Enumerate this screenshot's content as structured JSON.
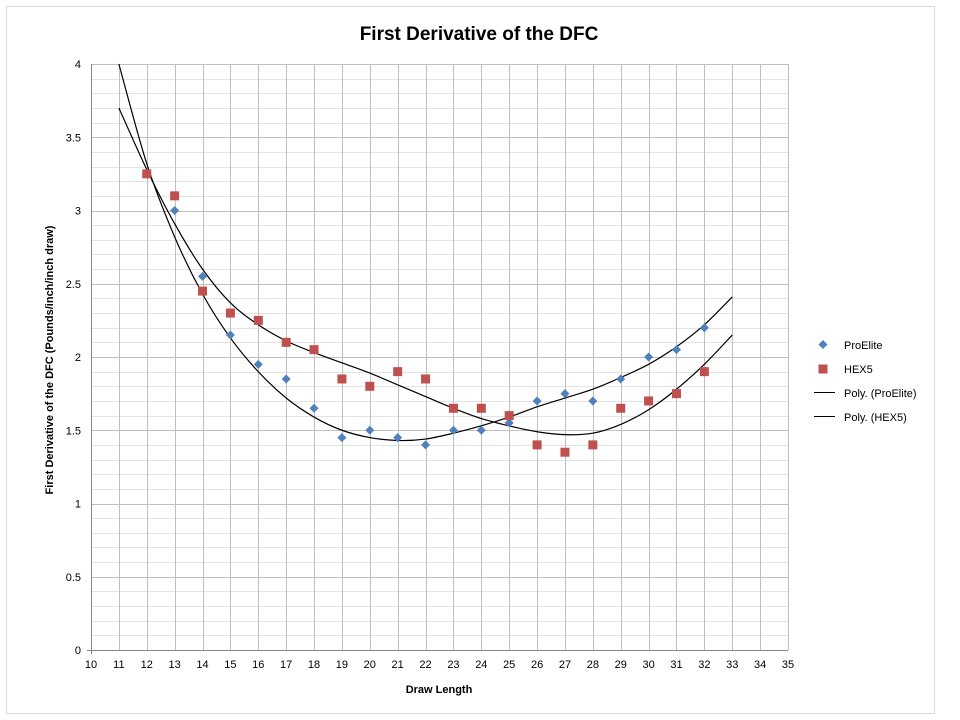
{
  "chart_data": {
    "type": "scatter",
    "title": "First Derivative of the DFC",
    "xlabel": "Draw Length",
    "ylabel": "First Derivative of the DFC (Pounds/inch/inch  draw)",
    "xlim": [
      10,
      35
    ],
    "ylim": [
      0,
      4
    ],
    "xticks": [
      10,
      11,
      12,
      13,
      14,
      15,
      16,
      17,
      18,
      19,
      20,
      21,
      22,
      23,
      24,
      25,
      26,
      27,
      28,
      29,
      30,
      31,
      32,
      33,
      34,
      35
    ],
    "yticks": [
      "0",
      "0.5",
      "1",
      "1.5",
      "2",
      "2.5",
      "3",
      "3.5",
      "4"
    ],
    "ytick_values": [
      0,
      0.5,
      1,
      1.5,
      2,
      2.5,
      3,
      3.5,
      4
    ],
    "grid": true,
    "legend_position": "right",
    "series": [
      {
        "name": "ProElite",
        "marker": "diamond",
        "color": "#4f81bd",
        "x": [
          12,
          13,
          14,
          15,
          16,
          17,
          18,
          19,
          20,
          21,
          22,
          23,
          24,
          25,
          26,
          27,
          28,
          29,
          30,
          31,
          32
        ],
        "y": [
          3.25,
          3.0,
          2.55,
          2.15,
          1.95,
          1.85,
          1.65,
          1.45,
          1.5,
          1.45,
          1.4,
          1.5,
          1.5,
          1.55,
          1.7,
          1.75,
          1.7,
          1.85,
          2.0,
          2.05,
          2.2
        ]
      },
      {
        "name": "HEX5",
        "marker": "square",
        "color": "#c0504d",
        "x": [
          12,
          13,
          14,
          15,
          16,
          17,
          18,
          19,
          20,
          21,
          22,
          23,
          24,
          25,
          26,
          27,
          28,
          29,
          30,
          31,
          32
        ],
        "y": [
          3.25,
          3.1,
          2.45,
          2.3,
          2.25,
          2.1,
          2.05,
          1.85,
          1.8,
          1.9,
          1.85,
          1.65,
          1.65,
          1.6,
          1.4,
          1.35,
          1.4,
          1.65,
          1.7,
          1.75,
          1.9
        ]
      }
    ],
    "trendlines": [
      {
        "name": "Poly. (ProElite)",
        "color": "#000000",
        "x": [
          11,
          12,
          13,
          14,
          15,
          16,
          17,
          18,
          19,
          20,
          21,
          22,
          23,
          24,
          25,
          26,
          27,
          28,
          29,
          30,
          31,
          32,
          33
        ],
        "y": [
          4.0,
          3.32,
          2.82,
          2.43,
          2.13,
          1.9,
          1.72,
          1.59,
          1.5,
          1.45,
          1.43,
          1.44,
          1.48,
          1.53,
          1.59,
          1.66,
          1.72,
          1.78,
          1.86,
          1.95,
          2.07,
          2.22,
          2.41
        ]
      },
      {
        "name": "Poly. (HEX5)",
        "color": "#000000",
        "x": [
          11,
          12,
          13,
          14,
          15,
          16,
          17,
          18,
          19,
          20,
          21,
          22,
          23,
          24,
          25,
          26,
          27,
          28,
          29,
          30,
          31,
          32,
          33
        ],
        "y": [
          3.7,
          3.28,
          2.91,
          2.6,
          2.37,
          2.22,
          2.11,
          2.03,
          1.96,
          1.89,
          1.81,
          1.73,
          1.65,
          1.58,
          1.53,
          1.49,
          1.47,
          1.48,
          1.54,
          1.64,
          1.78,
          1.95,
          2.15
        ]
      }
    ]
  }
}
